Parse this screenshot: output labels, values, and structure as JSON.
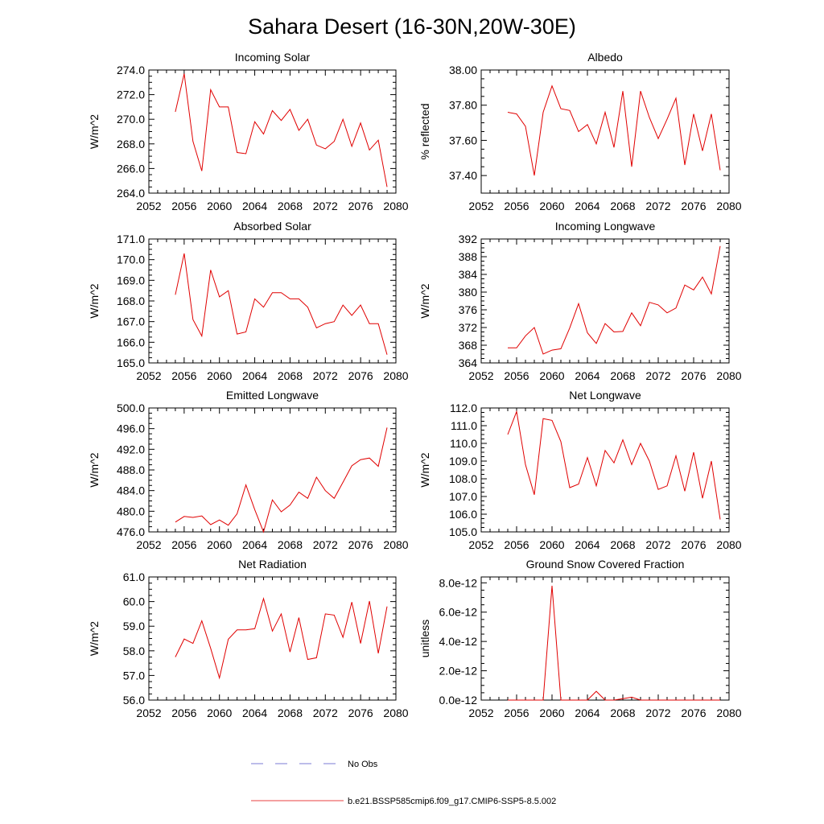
{
  "figure_title": "Sahara Desert (16-30N,20W-30E)",
  "legend": {
    "obs_label": "No Obs",
    "model_label": "b.e21.BSSP585cmip6.f09_g17.CMIP6-SSP5-8.5.002",
    "obs_color": "#5050c8",
    "model_color": "#e00000"
  },
  "chart_data": [
    {
      "type": "line",
      "title": "Incoming Solar",
      "ylabel": "W/m^2",
      "xlim": [
        2052,
        2080
      ],
      "ylim": [
        264,
        274
      ],
      "xticks": [
        2052,
        2056,
        2060,
        2064,
        2068,
        2072,
        2076,
        2080
      ],
      "xtick_labels": [
        "2052",
        "2056",
        "2060",
        "2064",
        "2068",
        "2072",
        "2076",
        "2080"
      ],
      "yticks": [
        264,
        266,
        268,
        270,
        272,
        274
      ],
      "ytick_labels": [
        "264.0",
        "266.0",
        "268.0",
        "270.0",
        "272.0",
        "274.0"
      ],
      "series": [
        {
          "color": "#e00000",
          "x": [
            2055,
            2056,
            2057,
            2058,
            2059,
            2060,
            2061,
            2062,
            2063,
            2064,
            2065,
            2066,
            2067,
            2068,
            2069,
            2070,
            2071,
            2072,
            2073,
            2074,
            2075,
            2076,
            2077,
            2078,
            2079
          ],
          "y": [
            270.6,
            273.7,
            268.2,
            265.8,
            272.4,
            271.0,
            271.0,
            267.3,
            267.2,
            269.8,
            268.8,
            270.7,
            269.9,
            270.8,
            269.1,
            270.0,
            267.9,
            267.6,
            268.2,
            270.0,
            267.8,
            269.7,
            267.5,
            268.3,
            264.5
          ]
        }
      ]
    },
    {
      "type": "line",
      "title": "Albedo",
      "ylabel": "% reflected",
      "xlim": [
        2052,
        2080
      ],
      "ylim": [
        37.3,
        38.0
      ],
      "xticks": [
        2052,
        2056,
        2060,
        2064,
        2068,
        2072,
        2076,
        2080
      ],
      "xtick_labels": [
        "2052",
        "2056",
        "2060",
        "2064",
        "2068",
        "2072",
        "2076",
        "2080"
      ],
      "yticks": [
        37.4,
        37.6,
        37.8,
        38.0
      ],
      "ytick_labels": [
        "37.40",
        "37.60",
        "37.80",
        "38.00"
      ],
      "series": [
        {
          "color": "#e00000",
          "x": [
            2055,
            2056,
            2057,
            2058,
            2059,
            2060,
            2061,
            2062,
            2063,
            2064,
            2065,
            2066,
            2067,
            2068,
            2069,
            2070,
            2071,
            2072,
            2073,
            2074,
            2075,
            2076,
            2077,
            2078,
            2079
          ],
          "y": [
            37.76,
            37.75,
            37.68,
            37.4,
            37.76,
            37.91,
            37.78,
            37.77,
            37.65,
            37.69,
            37.58,
            37.76,
            37.56,
            37.88,
            37.45,
            37.88,
            37.73,
            37.61,
            37.72,
            37.84,
            37.46,
            37.75,
            37.54,
            37.75,
            37.43
          ]
        }
      ]
    },
    {
      "type": "line",
      "title": "Absorbed Solar",
      "ylabel": "W/m^2",
      "xlim": [
        2052,
        2080
      ],
      "ylim": [
        165,
        171
      ],
      "xticks": [
        2052,
        2056,
        2060,
        2064,
        2068,
        2072,
        2076,
        2080
      ],
      "xtick_labels": [
        "2052",
        "2056",
        "2060",
        "2064",
        "2068",
        "2072",
        "2076",
        "2080"
      ],
      "yticks": [
        165,
        166,
        167,
        168,
        169,
        170,
        171
      ],
      "ytick_labels": [
        "165.0",
        "166.0",
        "167.0",
        "168.0",
        "169.0",
        "170.0",
        "171.0"
      ],
      "series": [
        {
          "color": "#e00000",
          "x": [
            2055,
            2056,
            2057,
            2058,
            2059,
            2060,
            2061,
            2062,
            2063,
            2064,
            2065,
            2066,
            2067,
            2068,
            2069,
            2070,
            2071,
            2072,
            2073,
            2074,
            2075,
            2076,
            2077,
            2078,
            2079
          ],
          "y": [
            168.3,
            170.3,
            167.1,
            166.3,
            169.5,
            168.2,
            168.5,
            166.4,
            166.5,
            168.1,
            167.7,
            168.4,
            168.4,
            168.1,
            168.1,
            167.7,
            166.7,
            166.9,
            167.0,
            167.8,
            167.3,
            167.8,
            166.9,
            166.9,
            165.4
          ]
        }
      ]
    },
    {
      "type": "line",
      "title": "Incoming Longwave",
      "ylabel": "W/m^2",
      "xlim": [
        2052,
        2080
      ],
      "ylim": [
        364,
        392
      ],
      "xticks": [
        2052,
        2056,
        2060,
        2064,
        2068,
        2072,
        2076,
        2080
      ],
      "xtick_labels": [
        "2052",
        "2056",
        "2060",
        "2064",
        "2068",
        "2072",
        "2076",
        "2080"
      ],
      "yticks": [
        364,
        368,
        372,
        376,
        380,
        384,
        388,
        392
      ],
      "ytick_labels": [
        "364",
        "368",
        "372",
        "376",
        "380",
        "384",
        "388",
        "392"
      ],
      "series": [
        {
          "color": "#e00000",
          "x": [
            2055,
            2056,
            2057,
            2058,
            2059,
            2060,
            2061,
            2062,
            2063,
            2064,
            2065,
            2066,
            2067,
            2068,
            2069,
            2070,
            2071,
            2072,
            2073,
            2074,
            2075,
            2076,
            2077,
            2078,
            2079
          ],
          "y": [
            367.4,
            367.4,
            370.1,
            372.0,
            366.0,
            366.9,
            367.2,
            371.9,
            377.4,
            370.8,
            368.4,
            372.9,
            371.0,
            371.1,
            375.3,
            372.4,
            377.7,
            377.1,
            375.3,
            376.4,
            381.6,
            380.5,
            383.4,
            379.6,
            390.4
          ]
        }
      ]
    },
    {
      "type": "line",
      "title": "Emitted Longwave",
      "ylabel": "W/m^2",
      "xlim": [
        2052,
        2080
      ],
      "ylim": [
        476,
        500
      ],
      "xticks": [
        2052,
        2056,
        2060,
        2064,
        2068,
        2072,
        2076,
        2080
      ],
      "xtick_labels": [
        "2052",
        "2056",
        "2060",
        "2064",
        "2068",
        "2072",
        "2076",
        "2080"
      ],
      "yticks": [
        476,
        480,
        484,
        488,
        492,
        496,
        500
      ],
      "ytick_labels": [
        "476.0",
        "480.0",
        "484.0",
        "488.0",
        "492.0",
        "496.0",
        "500.0"
      ],
      "series": [
        {
          "color": "#e00000",
          "x": [
            2055,
            2056,
            2057,
            2058,
            2059,
            2060,
            2061,
            2062,
            2063,
            2064,
            2065,
            2066,
            2067,
            2068,
            2069,
            2070,
            2071,
            2072,
            2073,
            2074,
            2075,
            2076,
            2077,
            2078,
            2079
          ],
          "y": [
            477.9,
            479.0,
            478.8,
            479.1,
            477.4,
            478.3,
            477.3,
            479.5,
            485.1,
            480.3,
            476.0,
            482.2,
            479.9,
            481.2,
            483.7,
            482.5,
            486.6,
            484.0,
            482.5,
            485.6,
            488.8,
            490.0,
            490.3,
            488.7,
            496.2
          ]
        }
      ]
    },
    {
      "type": "line",
      "title": "Net Longwave",
      "ylabel": "W/m^2",
      "xlim": [
        2052,
        2080
      ],
      "ylim": [
        105,
        112
      ],
      "xticks": [
        2052,
        2056,
        2060,
        2064,
        2068,
        2072,
        2076,
        2080
      ],
      "xtick_labels": [
        "2052",
        "2056",
        "2060",
        "2064",
        "2068",
        "2072",
        "2076",
        "2080"
      ],
      "yticks": [
        105,
        106,
        107,
        108,
        109,
        110,
        111,
        112
      ],
      "ytick_labels": [
        "105.0",
        "106.0",
        "107.0",
        "108.0",
        "109.0",
        "110.0",
        "111.0",
        "112.0"
      ],
      "series": [
        {
          "color": "#e00000",
          "x": [
            2055,
            2056,
            2057,
            2058,
            2059,
            2060,
            2061,
            2062,
            2063,
            2064,
            2065,
            2066,
            2067,
            2068,
            2069,
            2070,
            2071,
            2072,
            2073,
            2074,
            2075,
            2076,
            2077,
            2078,
            2079
          ],
          "y": [
            110.5,
            111.8,
            108.8,
            107.1,
            111.4,
            111.3,
            110.1,
            107.5,
            107.7,
            109.2,
            107.6,
            109.6,
            108.9,
            110.2,
            108.8,
            110.0,
            109.0,
            107.4,
            107.6,
            109.3,
            107.3,
            109.5,
            106.9,
            109.0,
            105.7
          ]
        }
      ]
    },
    {
      "type": "line",
      "title": "Net Radiation",
      "ylabel": "W/m^2",
      "xlim": [
        2052,
        2080
      ],
      "ylim": [
        56,
        61
      ],
      "xticks": [
        2052,
        2056,
        2060,
        2064,
        2068,
        2072,
        2076,
        2080
      ],
      "xtick_labels": [
        "2052",
        "2056",
        "2060",
        "2064",
        "2068",
        "2072",
        "2076",
        "2080"
      ],
      "yticks": [
        56,
        57,
        58,
        59,
        60,
        61
      ],
      "ytick_labels": [
        "56.0",
        "57.0",
        "58.0",
        "59.0",
        "60.0",
        "61.0"
      ],
      "series": [
        {
          "color": "#e00000",
          "x": [
            2055,
            2056,
            2057,
            2058,
            2059,
            2060,
            2061,
            2062,
            2063,
            2064,
            2065,
            2066,
            2067,
            2068,
            2069,
            2070,
            2071,
            2072,
            2073,
            2074,
            2075,
            2076,
            2077,
            2078,
            2079
          ],
          "y": [
            57.75,
            58.48,
            58.3,
            59.22,
            58.1,
            56.9,
            58.47,
            58.85,
            58.85,
            58.9,
            60.12,
            58.8,
            59.5,
            57.95,
            59.35,
            57.65,
            57.72,
            59.5,
            59.45,
            58.55,
            59.98,
            58.3,
            60.02,
            57.9,
            59.8
          ]
        }
      ]
    },
    {
      "type": "line",
      "title": "Ground Snow Covered Fraction",
      "ylabel": "unitless",
      "xlim": [
        2052,
        2080
      ],
      "ylim": [
        0,
        8.4e-12
      ],
      "xticks": [
        2052,
        2056,
        2060,
        2064,
        2068,
        2072,
        2076,
        2080
      ],
      "xtick_labels": [
        "2052",
        "2056",
        "2060",
        "2064",
        "2068",
        "2072",
        "2076",
        "2080"
      ],
      "yticks": [
        0,
        2e-12,
        4e-12,
        6e-12,
        8e-12
      ],
      "ytick_labels": [
        "0.0e-12",
        "2.0e-12",
        "4.0e-12",
        "6.0e-12",
        "8.0e-12"
      ],
      "series": [
        {
          "color": "#e00000",
          "x": [
            2055,
            2056,
            2057,
            2058,
            2059,
            2060,
            2061,
            2062,
            2063,
            2064,
            2065,
            2066,
            2067,
            2068,
            2069,
            2070,
            2071,
            2072,
            2073,
            2074,
            2075,
            2076,
            2077,
            2078,
            2079
          ],
          "y": [
            0,
            0,
            0,
            0,
            0,
            7.8e-12,
            0,
            0,
            0,
            0,
            6e-13,
            0,
            0,
            1e-13,
            2e-13,
            0,
            0,
            0,
            0,
            0,
            0,
            0,
            0,
            0,
            0
          ]
        }
      ]
    }
  ]
}
